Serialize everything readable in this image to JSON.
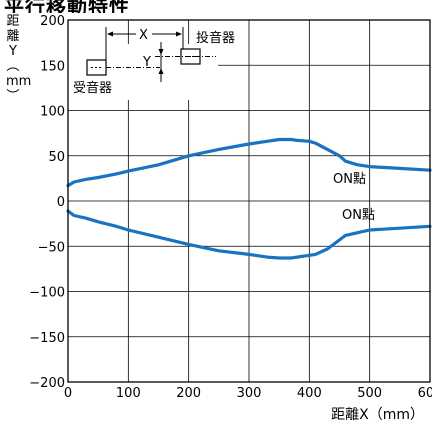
{
  "chart_data": {
    "type": "line",
    "title": "平行移動特性",
    "xlabel": "距離X（mm）",
    "ylabel": "距\n離\nY\n︵\nmm\n︶",
    "xlim": [
      0,
      600
    ],
    "ylim": [
      -200,
      200
    ],
    "xticks": [
      0,
      100,
      200,
      300,
      400,
      500,
      600
    ],
    "yticks": [
      200,
      150,
      100,
      50,
      0,
      -50,
      -100,
      -150,
      -200
    ],
    "ytick_labels": [
      "200",
      "150",
      "100",
      "50",
      "0",
      "−50",
      "−100",
      "−150",
      "−200"
    ],
    "grid": true,
    "series": [
      {
        "name": "ON點",
        "color": "#1a73c0",
        "x": [
          0,
          10,
          30,
          50,
          80,
          100,
          150,
          200,
          250,
          300,
          330,
          350,
          370,
          380,
          400,
          410,
          430,
          450,
          460,
          480,
          500,
          550,
          600
        ],
        "y": [
          17,
          21,
          24,
          26,
          30,
          33,
          40,
          50,
          57,
          63,
          66,
          68,
          68,
          67,
          66,
          64,
          57,
          50,
          44,
          40,
          38,
          36,
          34
        ]
      },
      {
        "name": "ON點",
        "color": "#1a73c0",
        "x": [
          0,
          10,
          30,
          50,
          80,
          100,
          150,
          200,
          250,
          300,
          330,
          350,
          370,
          390,
          400,
          410,
          430,
          450,
          460,
          480,
          500,
          550,
          600
        ],
        "y": [
          -11,
          -16,
          -19,
          -23,
          -28,
          -32,
          -40,
          -48,
          -55,
          -59,
          -62,
          -63,
          -63,
          -61,
          -60,
          -59,
          -53,
          -43,
          -38,
          -35,
          -32,
          -30,
          -28
        ]
      }
    ],
    "annotations": {
      "on_point_upper": "ON點",
      "on_point_lower": "ON點",
      "emitter": "投音器",
      "receiver": "受音器",
      "x_marker": "X",
      "y_marker": "Y"
    }
  }
}
